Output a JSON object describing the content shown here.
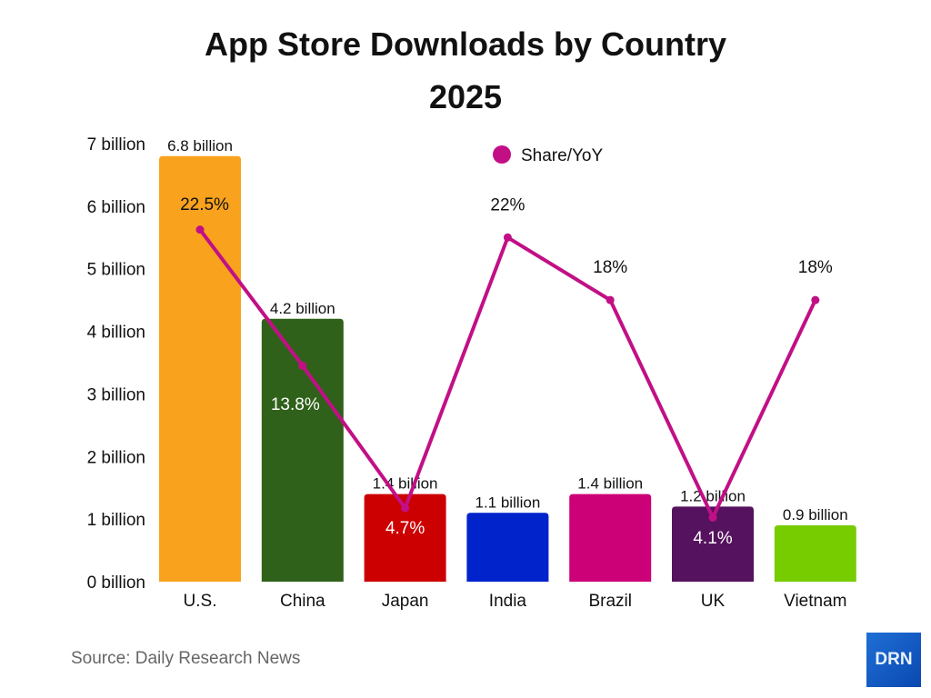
{
  "chart_data": {
    "type": "bar",
    "title": "App Store Downloads by Country",
    "subtitle": "2025",
    "categories": [
      "U.S.",
      "China",
      "Japan",
      "India",
      "Brazil",
      "UK",
      "Vietnam"
    ],
    "values": [
      6.8,
      4.2,
      1.4,
      1.1,
      1.4,
      1.2,
      0.9
    ],
    "value_labels": [
      "6.8 billion",
      "4.2 billion",
      "1.4 billion",
      "1.1 billion",
      "1.4 billion",
      "1.2 billion",
      "0.9 billion"
    ],
    "bar_colors": [
      "#f9a21e",
      "#2f611a",
      "#cc0000",
      "#0023cc",
      "#cc0077",
      "#55125e",
      "#77cc00"
    ],
    "ylim": [
      0,
      7
    ],
    "yticks": [
      "0 billion",
      "1 billion",
      "2 billion",
      "3 billion",
      "4 billion",
      "5 billion",
      "6 billion",
      "7 billion"
    ],
    "grid": false,
    "line_series": {
      "name": "Share/YoY",
      "color": "#c20f86",
      "values": [
        22.5,
        13.8,
        4.7,
        22,
        18,
        4.1,
        18
      ],
      "labels": [
        "22.5%",
        "13.8%",
        "4.7%",
        "22%",
        "18%",
        "4.1%",
        "18%"
      ],
      "ylim": [
        0,
        28
      ]
    },
    "legend_placement": "top-center"
  },
  "source": "Source: Daily Research News",
  "logo_text": "DRN"
}
